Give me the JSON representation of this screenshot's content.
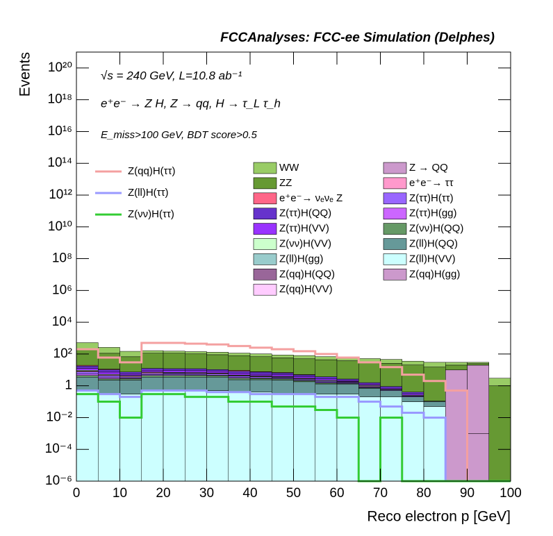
{
  "chart_data": {
    "type": "stacked_histogram",
    "title": "FCCAnalyses: FCC-ee Simulation (Delphes)",
    "annotations": [
      "√s = 240 GeV, L=10.8 ab⁻¹",
      "e⁺e⁻ → Z H, Z → qq, H → τ_L τ_h",
      "E_miss>100 GeV, BDT score>0.5"
    ],
    "x_label": "Reco electron p [GeV]",
    "y_label": "Events",
    "xlim": [
      0,
      100
    ],
    "xticks": [
      0,
      10,
      20,
      30,
      40,
      50,
      60,
      70,
      80,
      90,
      100
    ],
    "ylim": [
      1e-06,
      1e+21
    ],
    "log_y": true,
    "yticks": [
      {
        "value": 1e-06,
        "label": "10⁻⁶"
      },
      {
        "value": 0.0001,
        "label": "10⁻⁴"
      },
      {
        "value": 0.01,
        "label": "10⁻²"
      },
      1,
      {
        "value": 100,
        "label": "10²"
      },
      {
        "value": 10000,
        "label": "10⁴"
      },
      {
        "value": 1000000.0,
        "label": "10⁶"
      },
      {
        "value": 100000000.0,
        "label": "10⁸"
      },
      {
        "value": 10000000000.0,
        "label": "10¹⁰"
      },
      {
        "value": 1000000000000.0,
        "label": "10¹²"
      },
      {
        "value": 100000000000000.0,
        "label": "10¹⁴"
      },
      {
        "value": 1e+16,
        "label": "10¹⁶"
      },
      {
        "value": 1e+18,
        "label": "10¹⁸"
      },
      {
        "value": 1e+20,
        "label": "10²⁰"
      }
    ],
    "bins": [
      0,
      5,
      10,
      15,
      20,
      25,
      30,
      35,
      40,
      45,
      50,
      55,
      60,
      65,
      70,
      75,
      80,
      85,
      90,
      95,
      100
    ],
    "series": [
      {
        "name": "WW",
        "color": "#99cc66",
        "values": [
          300,
          150,
          80,
          50,
          40,
          40,
          40,
          35,
          35,
          30,
          30,
          25,
          25,
          20,
          20,
          15,
          15,
          10,
          5,
          2
        ]
      },
      {
        "name": "ZZ",
        "color": "#669933",
        "values": [
          200,
          100,
          60,
          100,
          100,
          90,
          80,
          70,
          60,
          50,
          45,
          40,
          35,
          30,
          25,
          20,
          15,
          10,
          5,
          1
        ]
      },
      {
        "name": "e⁺e⁻→ νₑνₑ Z",
        "color": "#ff6688",
        "values": [
          2,
          1,
          0,
          0,
          0,
          0,
          0,
          1,
          0.5,
          0.5,
          0.3,
          0,
          0,
          0,
          0,
          0,
          0,
          0,
          0,
          0
        ]
      },
      {
        "name": "Z(ττ)H(QQ)",
        "color": "#6633cc",
        "values": [
          5,
          3,
          2,
          3,
          3,
          3,
          2,
          2,
          2,
          1.5,
          1,
          1,
          0.5,
          0.3,
          0.2,
          0.1,
          0,
          0,
          0,
          0
        ]
      },
      {
        "name": "Z(ττ)H(VV)",
        "color": "#9933ff",
        "values": [
          3,
          2,
          1,
          2,
          2,
          2,
          2,
          1.5,
          1,
          1,
          0.8,
          0.5,
          0.3,
          0.2,
          0.1,
          0.05,
          0,
          0,
          0,
          0
        ]
      },
      {
        "name": "Z(νν)H(VV)",
        "color": "#ccffcc",
        "values": [
          1,
          0.5,
          0.3,
          0.5,
          0.5,
          0.5,
          0.4,
          0.4,
          0.3,
          0.3,
          0.2,
          0.2,
          0.1,
          0.1,
          0.05,
          0.02,
          0,
          0,
          0,
          0
        ]
      },
      {
        "name": "Z(ll)H(gg)",
        "color": "#99cccc",
        "values": [
          0.02,
          0.01,
          0.01,
          0.01,
          0.01,
          0.01,
          0.01,
          0.01,
          0.01,
          0.01,
          0.01,
          0.01,
          0.01,
          0.01,
          0.01,
          0.01,
          0.01,
          0,
          0,
          0
        ]
      },
      {
        "name": "Z(qq)H(QQ)",
        "color": "#996699",
        "values": [
          0.001,
          0,
          0.001,
          0,
          0.001,
          0,
          0,
          0.001,
          0,
          0,
          0,
          0,
          0,
          0,
          0,
          0,
          0,
          0,
          0.001,
          0
        ]
      },
      {
        "name": "Z(qq)H(VV)",
        "color": "#ffccff",
        "values": [
          0,
          0,
          0,
          0,
          0,
          0,
          0,
          0,
          0,
          0,
          0,
          0,
          0,
          0,
          0,
          0.001,
          0.001,
          0.001,
          0,
          0
        ]
      },
      {
        "name": "Z → QQ",
        "color": "#cc99cc",
        "values": [
          0,
          0,
          0,
          0,
          0,
          0,
          0,
          0,
          0,
          0,
          0,
          0,
          0,
          0,
          0,
          0,
          0,
          10,
          20,
          0
        ]
      },
      {
        "name": "e⁺e⁻→ ττ",
        "color": "#ff99cc",
        "values": [
          1,
          0.5,
          0.5,
          1,
          0.5,
          0.5,
          0.5,
          0.3,
          0.3,
          0.2,
          0.2,
          0.1,
          0.1,
          0.1,
          0,
          0,
          0,
          0,
          0,
          0
        ]
      },
      {
        "name": "Z(ττ)H(ττ)",
        "color": "#9966ff",
        "values": [
          2,
          1,
          0.5,
          1,
          1,
          1,
          1,
          0.8,
          0.6,
          0.5,
          0.4,
          0.3,
          0.2,
          0.1,
          0.05,
          0.02,
          0,
          0,
          0,
          0
        ]
      },
      {
        "name": "Z(ττ)H(gg)",
        "color": "#cc66ff",
        "values": [
          1,
          0.5,
          0.3,
          0.5,
          0.5,
          0.4,
          0.3,
          0.3,
          0.2,
          0.2,
          0.1,
          0.1,
          0.05,
          0.02,
          0,
          0,
          0,
          0,
          0,
          0
        ]
      },
      {
        "name": "Z(νν)H(QQ)",
        "color": "#669966",
        "values": [
          1,
          0.5,
          0.5,
          1,
          1,
          1,
          0.8,
          0.6,
          0.5,
          0.4,
          0.3,
          0.2,
          0.1,
          0.05,
          0,
          0,
          0,
          0,
          0,
          0
        ]
      },
      {
        "name": "Z(ll)H(QQ)",
        "color": "#669999",
        "values": [
          3,
          2,
          2,
          3,
          3,
          3,
          3,
          2,
          2,
          2,
          1.5,
          1,
          1,
          0.5,
          0.3,
          0.1,
          0.05,
          0,
          0,
          0
        ]
      },
      {
        "name": "Z(ll)H(VV)",
        "color": "#ccffff",
        "values": [
          0.5,
          0.3,
          0.3,
          0.5,
          0.5,
          0.5,
          0.5,
          0.4,
          0.4,
          0.3,
          0.3,
          0.3,
          0.3,
          0.2,
          0.2,
          0.1,
          0.05,
          0,
          0,
          0
        ]
      },
      {
        "name": "Z(qq)H(gg)",
        "color": "#cc99cc",
        "values": [
          0,
          0,
          0,
          0,
          0,
          0,
          0,
          0,
          0,
          0,
          0,
          0,
          0,
          0,
          0,
          0,
          0,
          0,
          0.001,
          0
        ]
      }
    ],
    "lines": [
      {
        "name": "Z(qq)H(ττ)",
        "color": "#f4a0a0",
        "values": [
          200,
          60,
          30,
          500,
          500,
          450,
          400,
          320,
          250,
          200,
          150,
          100,
          60,
          30,
          15,
          5,
          2,
          0.5,
          0,
          0
        ]
      },
      {
        "name": "Z(ll)H(ττ)",
        "color": "#9999ff",
        "values": [
          0.5,
          0.3,
          0.2,
          0.5,
          0.5,
          0.5,
          0.4,
          0.4,
          0.3,
          0.3,
          0.3,
          0.2,
          0.2,
          0.1,
          0.05,
          0.02,
          0.01,
          0,
          0,
          0
        ]
      },
      {
        "name": "Z(νν)H(ττ)",
        "color": "#33cc33",
        "values": [
          0.3,
          0.1,
          0.01,
          0.3,
          0.3,
          0.2,
          0.2,
          0.1,
          0.1,
          0.05,
          0.05,
          0.03,
          0.01,
          0,
          0.01,
          0,
          0,
          0,
          0,
          0
        ]
      }
    ]
  }
}
